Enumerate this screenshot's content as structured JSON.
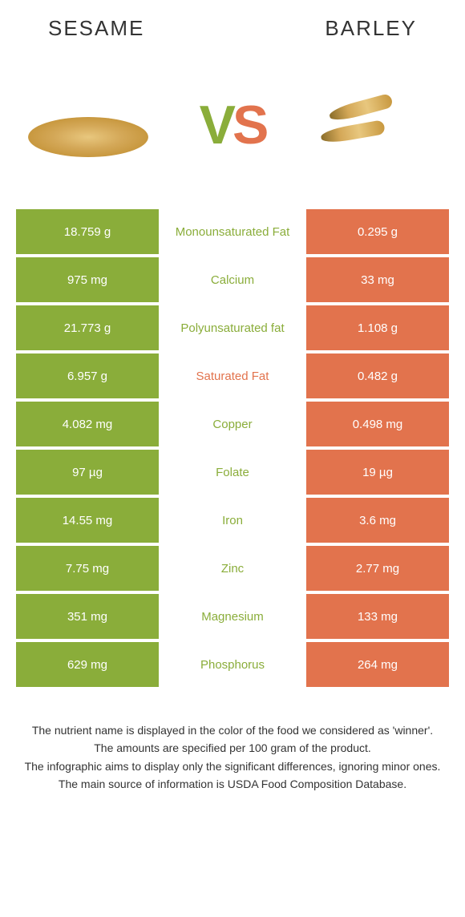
{
  "header": {
    "left": "Sesame",
    "right": "Barley"
  },
  "vs": {
    "v": "V",
    "s": "S"
  },
  "colors": {
    "left_bg": "#8aad3a",
    "right_bg": "#e2734d",
    "left_text": "#8aad3a",
    "right_text": "#e2734d"
  },
  "rows": [
    {
      "left": "18.759 g",
      "label": "Monounsaturated Fat",
      "right": "0.295 g",
      "winner": "left"
    },
    {
      "left": "975 mg",
      "label": "Calcium",
      "right": "33 mg",
      "winner": "left"
    },
    {
      "left": "21.773 g",
      "label": "Polyunsaturated fat",
      "right": "1.108 g",
      "winner": "left"
    },
    {
      "left": "6.957 g",
      "label": "Saturated Fat",
      "right": "0.482 g",
      "winner": "right"
    },
    {
      "left": "4.082 mg",
      "label": "Copper",
      "right": "0.498 mg",
      "winner": "left"
    },
    {
      "left": "97 µg",
      "label": "Folate",
      "right": "19 µg",
      "winner": "left"
    },
    {
      "left": "14.55 mg",
      "label": "Iron",
      "right": "3.6 mg",
      "winner": "left"
    },
    {
      "left": "7.75 mg",
      "label": "Zinc",
      "right": "2.77 mg",
      "winner": "left"
    },
    {
      "left": "351 mg",
      "label": "Magnesium",
      "right": "133 mg",
      "winner": "left"
    },
    {
      "left": "629 mg",
      "label": "Phosphorus",
      "right": "264 mg",
      "winner": "left"
    }
  ],
  "footer": {
    "l1": "The nutrient name is displayed in the color of the food we considered as 'winner'.",
    "l2": "The amounts are specified per 100 gram of the product.",
    "l3": "The infographic aims to display only the significant differences, ignoring minor ones.",
    "l4": "The main source of information is USDA Food Composition Database."
  }
}
